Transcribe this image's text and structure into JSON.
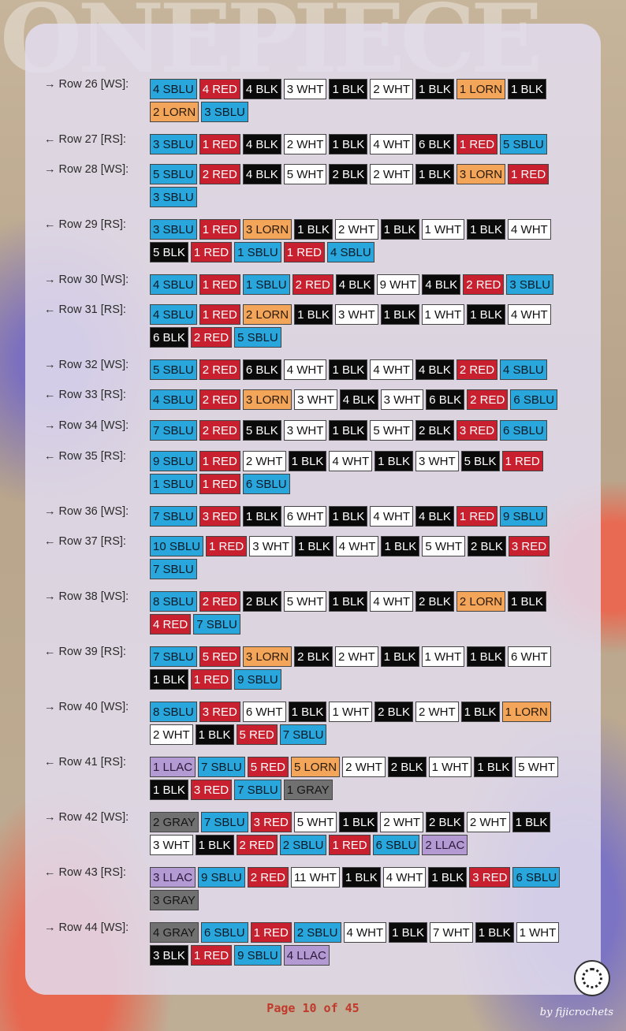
{
  "colors": {
    "SBLU": "#29a6dc",
    "RED": "#c8202e",
    "BLK": "#0a0a0a",
    "WHT": "#ffffff",
    "LORN": "#f3a65a",
    "LLAC": "#b49ad2",
    "GRAY": "#707070"
  },
  "rows": [
    {
      "label": "→ Row 26 [WS]:",
      "items": [
        "4 SBLU",
        "4 RED",
        "4 BLK",
        "3 WHT",
        "1 BLK",
        "2 WHT",
        "1 BLK",
        "1 LORN",
        "1 BLK",
        "2 LORN",
        "3 SBLU"
      ]
    },
    {
      "label": "← Row 27 [RS]:",
      "items": [
        "3 SBLU",
        "1 RED",
        "4 BLK",
        "2 WHT",
        "1 BLK",
        "4 WHT",
        "6 BLK",
        "1 RED",
        "5 SBLU"
      ]
    },
    {
      "label": "→ Row 28 [WS]:",
      "items": [
        "5 SBLU",
        "2 RED",
        "4 BLK",
        "5 WHT",
        "2 BLK",
        "2 WHT",
        "1 BLK",
        "3 LORN",
        "1 RED",
        "3 SBLU"
      ]
    },
    {
      "label": "← Row 29 [RS]:",
      "items": [
        "3 SBLU",
        "1 RED",
        "3 LORN",
        "1 BLK",
        "2 WHT",
        "1 BLK",
        "1 WHT",
        "1 BLK",
        "4 WHT",
        "5 BLK",
        "1 RED",
        "1 SBLU",
        "1 RED",
        "4 SBLU"
      ]
    },
    {
      "label": "→ Row 30 [WS]:",
      "items": [
        "4 SBLU",
        "1 RED",
        "1 SBLU",
        "2 RED",
        "4 BLK",
        "9 WHT",
        "4 BLK",
        "2 RED",
        "3 SBLU"
      ]
    },
    {
      "label": "← Row 31 [RS]:",
      "items": [
        "4 SBLU",
        "1 RED",
        "2 LORN",
        "1 BLK",
        "3 WHT",
        "1 BLK",
        "1 WHT",
        "1 BLK",
        "4 WHT",
        "6 BLK",
        "2 RED",
        "5 SBLU"
      ]
    },
    {
      "label": "→ Row 32 [WS]:",
      "items": [
        "5 SBLU",
        "2 RED",
        "6 BLK",
        "4 WHT",
        "1 BLK",
        "4 WHT",
        "4 BLK",
        "2 RED",
        "4 SBLU"
      ]
    },
    {
      "label": "← Row 33 [RS]:",
      "items": [
        "4 SBLU",
        "2 RED",
        "3 LORN",
        "3 WHT",
        "4 BLK",
        "3 WHT",
        "6 BLK",
        "2 RED",
        "6 SBLU"
      ]
    },
    {
      "label": "→ Row 34 [WS]:",
      "items": [
        "7 SBLU",
        "2 RED",
        "5 BLK",
        "3 WHT",
        "1 BLK",
        "5 WHT",
        "2 BLK",
        "3 RED",
        "6 SBLU"
      ]
    },
    {
      "label": "← Row 35 [RS]:",
      "items": [
        "9 SBLU",
        "1 RED",
        "2 WHT",
        "1 BLK",
        "4 WHT",
        "1 BLK",
        "3 WHT",
        "5 BLK",
        "1 RED",
        "1 SBLU",
        "1 RED",
        "6 SBLU"
      ]
    },
    {
      "label": "→ Row 36 [WS]:",
      "items": [
        "7 SBLU",
        "3 RED",
        "1 BLK",
        "6 WHT",
        "1 BLK",
        "4 WHT",
        "4 BLK",
        "1 RED",
        "9 SBLU"
      ]
    },
    {
      "label": "← Row 37 [RS]:",
      "items": [
        "10 SBLU",
        "1 RED",
        "3 WHT",
        "1 BLK",
        "4 WHT",
        "1 BLK",
        "5 WHT",
        "2 BLK",
        "3 RED",
        "7 SBLU"
      ]
    },
    {
      "label": "→ Row 38 [WS]:",
      "items": [
        "8 SBLU",
        "2 RED",
        "2 BLK",
        "5 WHT",
        "1 BLK",
        "4 WHT",
        "2 BLK",
        "2 LORN",
        "1 BLK",
        "4 RED",
        "7 SBLU"
      ]
    },
    {
      "label": "← Row 39 [RS]:",
      "items": [
        "7 SBLU",
        "5 RED",
        "3 LORN",
        "2 BLK",
        "2 WHT",
        "1 BLK",
        "1 WHT",
        "1 BLK",
        "6 WHT",
        "1 BLK",
        "1 RED",
        "9 SBLU"
      ]
    },
    {
      "label": "→ Row 40 [WS]:",
      "items": [
        "8 SBLU",
        "3 RED",
        "6 WHT",
        "1 BLK",
        "1 WHT",
        "2 BLK",
        "2 WHT",
        "1 BLK",
        "1 LORN",
        "2 WHT",
        "1 BLK",
        "5 RED",
        "7 SBLU"
      ]
    },
    {
      "label": "← Row 41 [RS]:",
      "items": [
        "1 LLAC",
        "7 SBLU",
        "5 RED",
        "5 LORN",
        "2 WHT",
        "2 BLK",
        "1 WHT",
        "1 BLK",
        "5 WHT",
        "1 BLK",
        "3 RED",
        "7 SBLU",
        "1 GRAY"
      ]
    },
    {
      "label": "→ Row 42 [WS]:",
      "items": [
        "2 GRAY",
        "7 SBLU",
        "3 RED",
        "5 WHT",
        "1 BLK",
        "2 WHT",
        "2 BLK",
        "2 WHT",
        "1 BLK",
        "3 WHT",
        "1 BLK",
        "2 RED",
        "2 SBLU",
        "1 RED",
        "6 SBLU",
        "2 LLAC"
      ]
    },
    {
      "label": "← Row 43 [RS]:",
      "items": [
        "3 LLAC",
        "9 SBLU",
        "2 RED",
        "11 WHT",
        "1 BLK",
        "4 WHT",
        "1 BLK",
        "3 RED",
        "6 SBLU",
        "3 GRAY"
      ]
    },
    {
      "label": "→ Row 44 [WS]:",
      "items": [
        "4 GRAY",
        "6 SBLU",
        "1 RED",
        "2 SBLU",
        "4 WHT",
        "1 BLK",
        "7 WHT",
        "1 BLK",
        "1 WHT",
        "3 BLK",
        "1 RED",
        "9 SBLU",
        "4 LLAC"
      ]
    }
  ],
  "footer": {
    "page_label": "Page 10 of 45",
    "credit": "by fijicrochets"
  }
}
